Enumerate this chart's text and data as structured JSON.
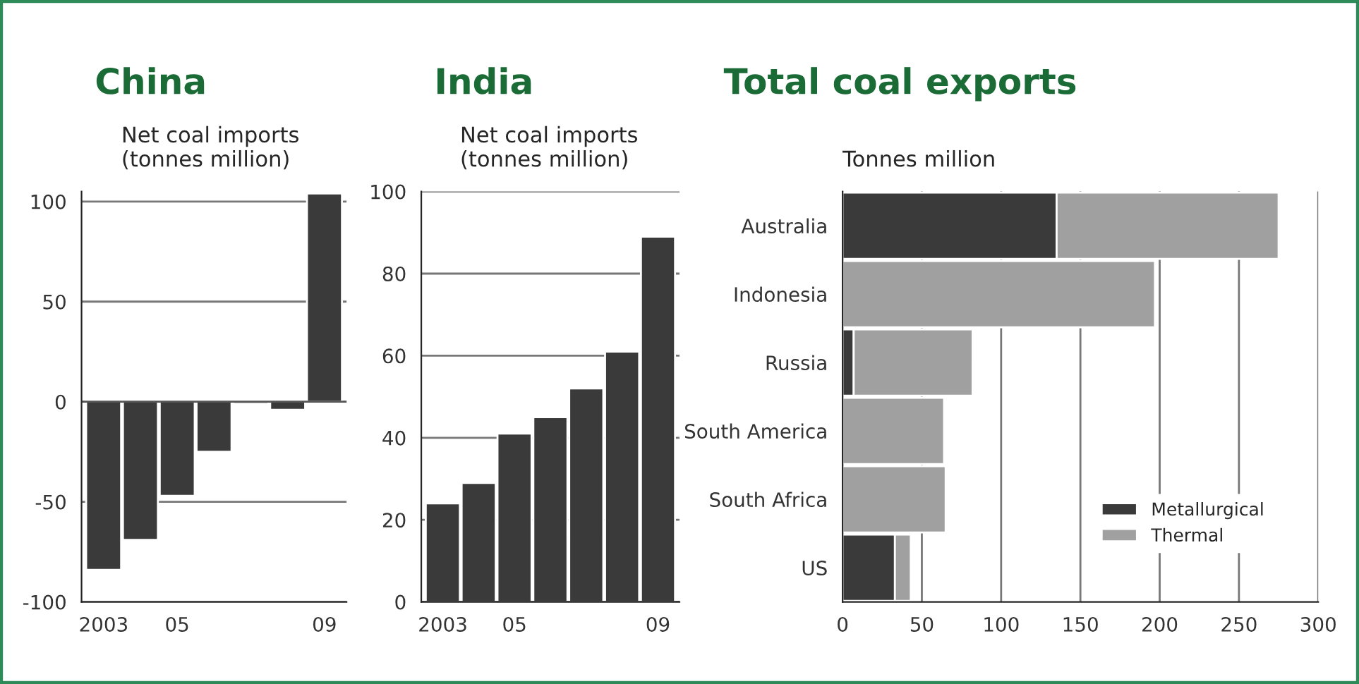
{
  "chart_data": [
    {
      "type": "bar",
      "title": "China",
      "subtitle": "Net coal imports\n(tonnes million)",
      "categories": [
        "2003",
        null,
        "05",
        null,
        null,
        null,
        "09"
      ],
      "series": [
        {
          "color": "#3a3a3a",
          "values": [
            -84,
            -69,
            -47,
            -25,
            -1,
            -4,
            104
          ]
        }
      ],
      "ylim": [
        -100,
        105
      ],
      "yticks": [
        -100,
        -50,
        0,
        50,
        100
      ],
      "grid": "y"
    },
    {
      "type": "bar",
      "title": "India",
      "subtitle": "Net coal imports\n(tonnes million)",
      "categories": [
        "2003",
        null,
        "05",
        null,
        null,
        null,
        "09"
      ],
      "series": [
        {
          "color": "#3a3a3a",
          "values": [
            24,
            29,
            41,
            45,
            52,
            61,
            89
          ]
        }
      ],
      "ylim": [
        0,
        100
      ],
      "yticks": [
        0,
        20,
        40,
        60,
        80,
        100
      ],
      "grid": "y"
    },
    {
      "type": "bar",
      "title": "Total coal exports",
      "subtitle": "Tonnes million",
      "orientation": "horizontal",
      "stacked": true,
      "categories": [
        "Australia",
        "Indonesia",
        "Russia",
        "South America",
        "South Africa",
        "US"
      ],
      "series": [
        {
          "name": "Metallurgical",
          "color": "#3a3a3a",
          "values": [
            135,
            0,
            7,
            0,
            0,
            33
          ]
        },
        {
          "name": "Thermal",
          "color": "#a0a0a0",
          "values": [
            140,
            197,
            75,
            64,
            65,
            10
          ]
        }
      ],
      "xlim": [
        0,
        300
      ],
      "xticks": [
        0,
        50,
        100,
        150,
        200,
        250,
        300
      ],
      "grid": "x",
      "legend": "lower right"
    }
  ]
}
